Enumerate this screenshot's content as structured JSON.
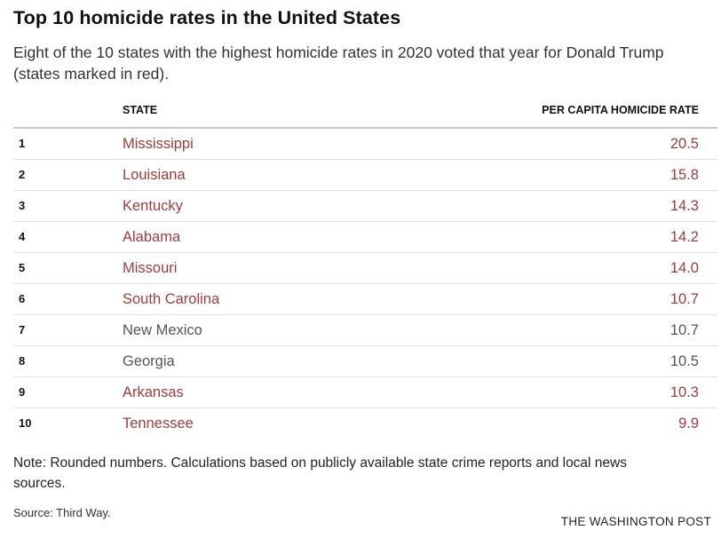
{
  "title": "Top 10 homicide rates in the United States",
  "subtitle": "Eight of the 10 states with the highest homicide rates in 2020 voted that year for Donald Trump (states marked in red).",
  "note": "Note: Rounded numbers. Calculations based on publicly available state crime reports and local news sources.",
  "source": "Source: Third Way.",
  "brand": "THE WASHINGTON POST",
  "colors": {
    "trump_state": "#9e3b3b",
    "other_state": "#555555"
  },
  "chart_data": {
    "type": "table",
    "columns": [
      "",
      "STATE",
      "PER CAPITA HOMICIDE RATE"
    ],
    "rows": [
      {
        "rank": "1",
        "state": "Mississippi",
        "rate": "20.5",
        "red": true
      },
      {
        "rank": "2",
        "state": "Louisiana",
        "rate": "15.8",
        "red": true
      },
      {
        "rank": "3",
        "state": "Kentucky",
        "rate": "14.3",
        "red": true
      },
      {
        "rank": "4",
        "state": "Alabama",
        "rate": "14.2",
        "red": true
      },
      {
        "rank": "5",
        "state": "Missouri",
        "rate": "14.0",
        "red": true
      },
      {
        "rank": "6",
        "state": "South Carolina",
        "rate": "10.7",
        "red": true
      },
      {
        "rank": "7",
        "state": "New Mexico",
        "rate": "10.7",
        "red": false
      },
      {
        "rank": "8",
        "state": "Georgia",
        "rate": "10.5",
        "red": false
      },
      {
        "rank": "9",
        "state": "Arkansas",
        "rate": "10.3",
        "red": true
      },
      {
        "rank": "10",
        "state": "Tennessee",
        "rate": "9.9",
        "red": true
      }
    ]
  }
}
